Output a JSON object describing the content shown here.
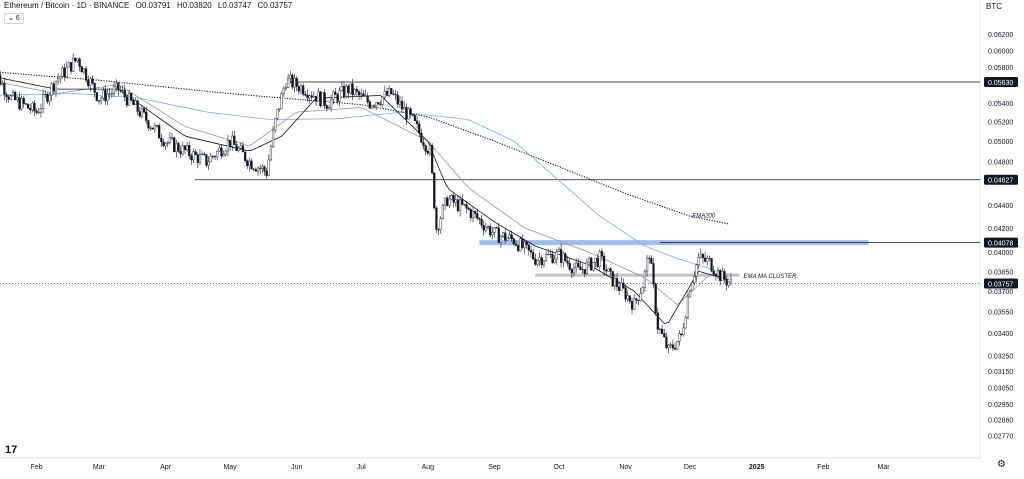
{
  "legend": {
    "symbol": "Ethereum / Bitcoin · 1D · BINANCE",
    "open": "O0.03791",
    "high": "H0.03820",
    "low": "L0.03747",
    "close": "C0.03757",
    "collapse_label": "6"
  },
  "currency": "BTC",
  "logo": "17",
  "colors": {
    "candle": "#131722",
    "ema200": "#131722",
    "ma_blue": "#7ea7e8",
    "ema_fast": "#131722",
    "ema_mid": "#9598a1",
    "zone_blue": "#9fbcf5",
    "zone_gray": "#c4c4c4",
    "last_price_bg": "#131722"
  },
  "chart_data": {
    "type": "line",
    "x_axis_labels": [
      "Feb",
      "Mar",
      "Apr",
      "May",
      "Jun",
      "Jul",
      "Aug",
      "Sep",
      "Oct",
      "Nov",
      "Dec",
      "2025",
      "Feb",
      "Mar"
    ],
    "y_axis_labels": [
      "0.06200",
      "0.06000",
      "0.05800",
      "0.05630",
      "0.05400",
      "0.05200",
      "0.05000",
      "0.04800",
      "0.04627",
      "0.04400",
      "0.04200",
      "0.04078",
      "0.04000",
      "0.03850",
      "0.03757",
      "0.03700",
      "0.03550",
      "0.03400",
      "0.03250",
      "0.03150",
      "0.03050",
      "0.02950",
      "0.02860",
      "0.02770"
    ],
    "y_scale": "log",
    "horizontal_levels": [
      0.0563,
      0.04627,
      0.04078
    ],
    "last_price": 0.03757,
    "zones": [
      {
        "start": "2024-08-25",
        "end": "2025-02-22",
        "value": 0.04078,
        "color": "blue"
      },
      {
        "start": "2024-09-20",
        "end": "2024-12-24",
        "value": 0.0382,
        "color": "gray",
        "label": "EMA MA CLUSTER"
      }
    ],
    "annotations": [
      {
        "text": "EMA200",
        "date": "2024-12-02",
        "value": 0.0429
      }
    ],
    "series": [
      {
        "kind": "price",
        "dates": [
          "2024-01-10",
          "2024-01-20",
          "2024-02-01",
          "2024-02-10",
          "2024-02-20",
          "2024-03-01",
          "2024-03-10",
          "2024-03-20",
          "2024-04-01",
          "2024-04-10",
          "2024-04-20",
          "2024-05-01",
          "2024-05-10",
          "2024-05-18",
          "2024-05-22",
          "2024-05-27",
          "2024-06-05",
          "2024-06-15",
          "2024-06-25",
          "2024-07-05",
          "2024-07-15",
          "2024-07-25",
          "2024-08-02",
          "2024-08-05",
          "2024-08-10",
          "2024-08-20",
          "2024-09-01",
          "2024-09-10",
          "2024-09-20",
          "2024-10-01",
          "2024-10-10",
          "2024-10-20",
          "2024-10-25",
          "2024-11-01",
          "2024-11-05",
          "2024-11-09",
          "2024-11-12",
          "2024-11-16",
          "2024-11-21",
          "2024-11-27",
          "2024-12-01",
          "2024-12-05",
          "2024-12-10",
          "2024-12-16",
          "2024-12-20"
        ],
        "values": [
          0.0585,
          0.0545,
          0.053,
          0.0565,
          0.059,
          0.0545,
          0.0555,
          0.053,
          0.05,
          0.049,
          0.048,
          0.05,
          0.048,
          0.047,
          0.052,
          0.0565,
          0.0555,
          0.054,
          0.0555,
          0.054,
          0.055,
          0.052,
          0.049,
          0.042,
          0.0445,
          0.0435,
          0.0415,
          0.041,
          0.0395,
          0.0398,
          0.0385,
          0.0395,
          0.038,
          0.0368,
          0.036,
          0.0375,
          0.04,
          0.0345,
          0.0328,
          0.0338,
          0.0375,
          0.0395,
          0.0392,
          0.038,
          0.0376
        ]
      },
      {
        "kind": "ema200",
        "dates": [
          "2024-01-10",
          "2024-03-01",
          "2024-05-01",
          "2024-07-01",
          "2024-08-01",
          "2024-09-01",
          "2024-10-01",
          "2024-11-01",
          "2024-12-01",
          "2024-12-20"
        ],
        "values": [
          0.0575,
          0.0565,
          0.055,
          0.0538,
          0.0525,
          0.05,
          0.0475,
          0.045,
          0.043,
          0.0423
        ]
      },
      {
        "kind": "ma_blue",
        "dates": [
          "2024-01-10",
          "2024-02-20",
          "2024-03-20",
          "2024-04-20",
          "2024-05-20",
          "2024-06-20",
          "2024-07-20",
          "2024-08-20",
          "2024-09-10",
          "2024-10-01",
          "2024-10-20",
          "2024-11-10",
          "2024-11-25",
          "2024-12-20"
        ],
        "values": [
          0.0548,
          0.055,
          0.0545,
          0.053,
          0.0522,
          0.0523,
          0.053,
          0.0522,
          0.05,
          0.0462,
          0.043,
          0.0405,
          0.0395,
          0.0382
        ]
      },
      {
        "kind": "ema_mid",
        "dates": [
          "2024-01-10",
          "2024-02-10",
          "2024-03-10",
          "2024-04-10",
          "2024-05-10",
          "2024-06-01",
          "2024-07-01",
          "2024-08-01",
          "2024-08-20",
          "2024-09-15",
          "2024-10-15",
          "2024-11-10",
          "2024-11-25",
          "2024-12-10",
          "2024-12-20"
        ],
        "values": [
          0.0565,
          0.055,
          0.056,
          0.0515,
          0.0495,
          0.053,
          0.0535,
          0.05,
          0.0455,
          0.042,
          0.04,
          0.038,
          0.036,
          0.0382,
          0.038
        ]
      },
      {
        "kind": "ema_fast",
        "dates": [
          "2024-01-10",
          "2024-02-10",
          "2024-03-10",
          "2024-04-10",
          "2024-05-10",
          "2024-05-25",
          "2024-06-10",
          "2024-07-10",
          "2024-08-01",
          "2024-08-10",
          "2024-09-01",
          "2024-09-20",
          "2024-10-15",
          "2024-11-05",
          "2024-11-20",
          "2024-12-05",
          "2024-12-20"
        ],
        "values": [
          0.057,
          0.0555,
          0.0555,
          0.0505,
          0.049,
          0.0505,
          0.0545,
          0.0548,
          0.05,
          0.0455,
          0.0425,
          0.0405,
          0.039,
          0.037,
          0.0345,
          0.0385,
          0.0378
        ]
      }
    ]
  }
}
